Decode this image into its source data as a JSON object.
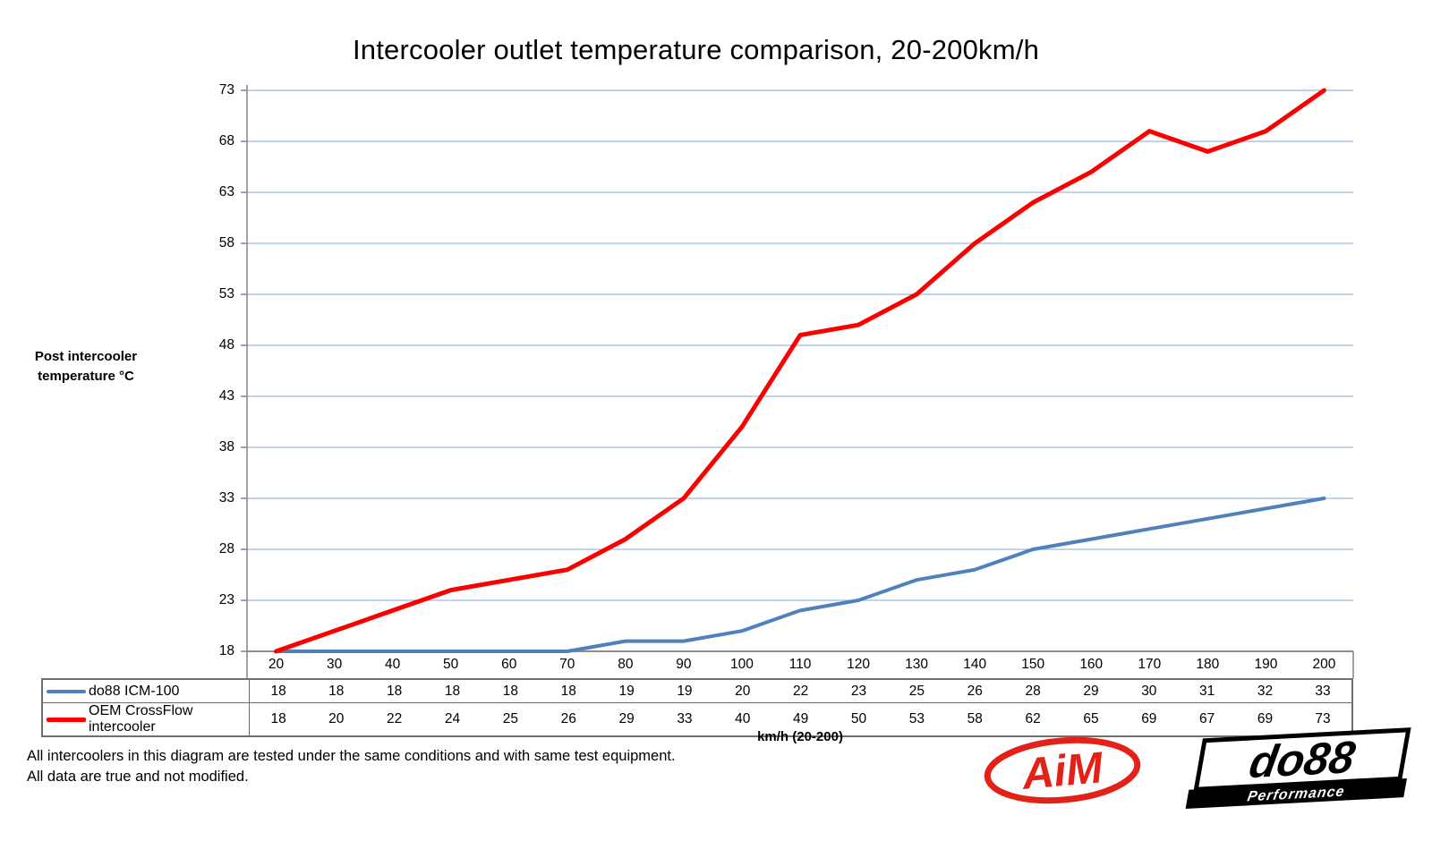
{
  "title": "Intercooler outlet temperature comparison, 20-200km/h",
  "chart_data": {
    "type": "line",
    "categories": [
      20,
      30,
      40,
      50,
      60,
      70,
      80,
      90,
      100,
      110,
      120,
      130,
      140,
      150,
      160,
      170,
      180,
      190,
      200
    ],
    "series": [
      {
        "name": "do88 ICM-100",
        "color": "#4F81BD",
        "stroke_width": 4,
        "values": [
          18,
          18,
          18,
          18,
          18,
          18,
          19,
          19,
          20,
          22,
          23,
          25,
          26,
          28,
          29,
          30,
          31,
          32,
          33
        ]
      },
      {
        "name": "OEM CrossFlow intercooler",
        "color": "#FB0000",
        "stroke_width": 5,
        "values": [
          18,
          20,
          22,
          24,
          25,
          26,
          29,
          33,
          40,
          49,
          50,
          53,
          58,
          62,
          65,
          69,
          67,
          69,
          73
        ]
      }
    ],
    "title": "Intercooler outlet temperature comparison, 20-200km/h",
    "ylabel_lines": [
      "Post intercooler",
      "temperature °C"
    ],
    "xlabel": "km/h (20-200)",
    "yticks": [
      18,
      23,
      28,
      33,
      38,
      43,
      48,
      53,
      58,
      63,
      68,
      73
    ],
    "ylim": [
      18,
      73
    ],
    "grid": true,
    "grid_color": "#9EB9DF",
    "axis_color": "#8C8C8C",
    "legend_position": "table-left",
    "data_table_shown": true
  },
  "footnote": {
    "line1": "All intercoolers in this diagram are tested under the same conditions and with same test equipment.",
    "line2": "All data are true and not modified."
  },
  "logos": {
    "aim": {
      "text": "AiM",
      "color": "#E32118"
    },
    "do88": {
      "text": "do88",
      "subtext": "Performance",
      "color": "#000000"
    }
  }
}
